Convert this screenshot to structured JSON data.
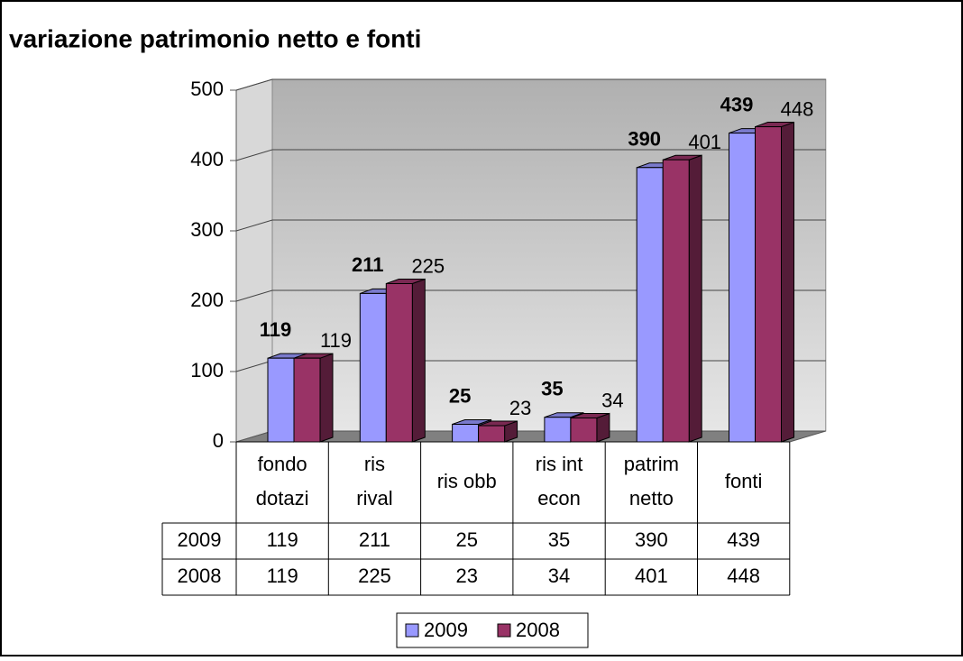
{
  "chart_data": {
    "type": "bar3d",
    "title": "variazione patrimonio netto e fonti",
    "categories": [
      [
        "fondo",
        "dotazi"
      ],
      [
        "ris",
        "rival"
      ],
      [
        "ris obb"
      ],
      [
        "ris int",
        "econ"
      ],
      [
        "patrim",
        "netto"
      ],
      [
        "fonti"
      ]
    ],
    "series": [
      {
        "name": "2009",
        "color": "#9999ff",
        "values": [
          119,
          211,
          25,
          35,
          390,
          439
        ]
      },
      {
        "name": "2008",
        "color": "#993366",
        "values": [
          119,
          225,
          23,
          34,
          401,
          448
        ]
      }
    ],
    "ylim": [
      0,
      500
    ],
    "yticks": [
      0,
      100,
      200,
      300,
      400,
      500
    ],
    "grid": true
  }
}
